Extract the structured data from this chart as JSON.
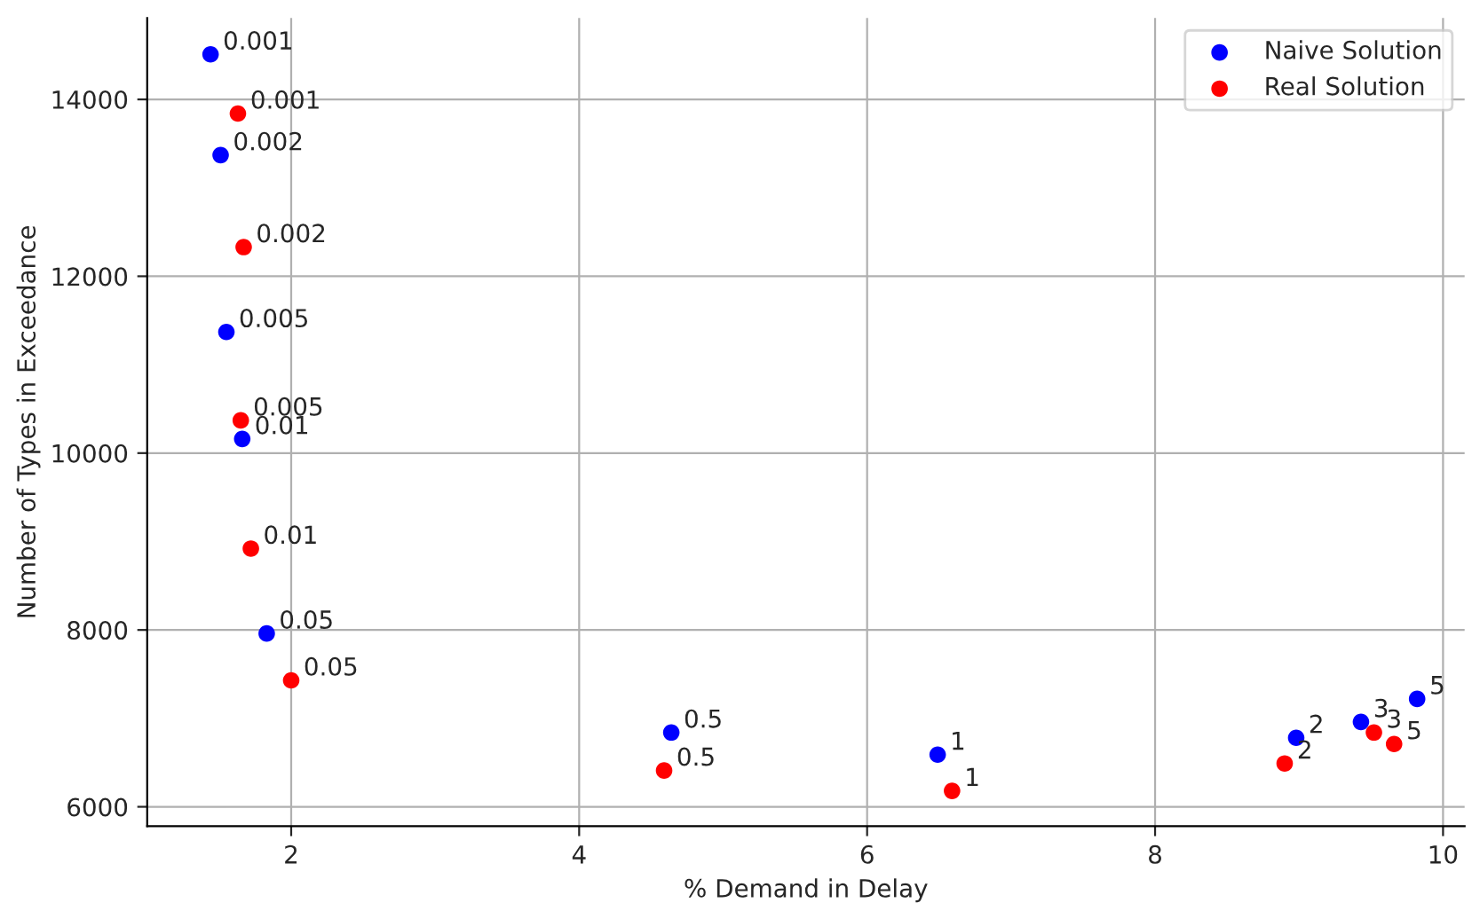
{
  "chart_data": {
    "type": "scatter",
    "xlabel": "% Demand in Delay",
    "ylabel": "Number of Types in Exceedance",
    "xlim": [
      1.0,
      10.15
    ],
    "ylim": [
      5780,
      14920
    ],
    "xticks": [
      2,
      4,
      6,
      8,
      10
    ],
    "yticks": [
      6000,
      8000,
      10000,
      12000,
      14000
    ],
    "grid": true,
    "legend": "top right",
    "marker": "circle",
    "series": [
      {
        "name": "Naive Solution",
        "color": "#0000ff",
        "x": [
          1.44,
          1.51,
          1.55,
          1.66,
          1.83,
          4.64,
          6.49,
          8.98,
          9.43,
          9.82
        ],
        "values": [
          14510,
          13370,
          11370,
          10160,
          7960,
          6840,
          6590,
          6780,
          6960,
          7220
        ]
      },
      {
        "name": "Real Solution",
        "color": "#ff0000",
        "x": [
          1.63,
          1.67,
          1.65,
          1.72,
          2.0,
          4.59,
          6.59,
          8.9,
          9.52,
          9.66
        ],
        "values": [
          13840,
          12330,
          10370,
          8920,
          7430,
          6410,
          6180,
          6490,
          6840,
          6710
        ]
      }
    ],
    "annotations": [
      {
        "text": "0.001",
        "x": 1.44,
        "y": 14510
      },
      {
        "text": "0.002",
        "x": 1.51,
        "y": 13370
      },
      {
        "text": "0.005",
        "x": 1.55,
        "y": 11370
      },
      {
        "text": "0.01",
        "x": 1.66,
        "y": 10160
      },
      {
        "text": "0.05",
        "x": 1.83,
        "y": 7960
      },
      {
        "text": "0.5",
        "x": 4.64,
        "y": 6840
      },
      {
        "text": "1",
        "x": 6.49,
        "y": 6590
      },
      {
        "text": "2",
        "x": 8.98,
        "y": 6780
      },
      {
        "text": "3",
        "x": 9.43,
        "y": 6960
      },
      {
        "text": "5",
        "x": 9.82,
        "y": 7220
      },
      {
        "text": "0.001",
        "x": 1.63,
        "y": 13840
      },
      {
        "text": "0.002",
        "x": 1.67,
        "y": 12330
      },
      {
        "text": "0.005",
        "x": 1.65,
        "y": 10370
      },
      {
        "text": "0.01",
        "x": 1.72,
        "y": 8920
      },
      {
        "text": "0.05",
        "x": 2.0,
        "y": 7430
      },
      {
        "text": "0.5",
        "x": 4.59,
        "y": 6410
      },
      {
        "text": "1",
        "x": 6.59,
        "y": 6180
      },
      {
        "text": "2",
        "x": 8.9,
        "y": 6490
      },
      {
        "text": "3",
        "x": 9.52,
        "y": 6840
      },
      {
        "text": "5",
        "x": 9.66,
        "y": 6710
      }
    ]
  }
}
